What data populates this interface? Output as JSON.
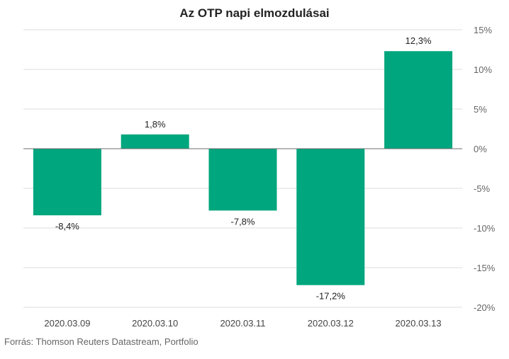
{
  "chart_data": {
    "type": "bar",
    "title": "Az OTP napi elmozdulásai",
    "categories": [
      "2020.03.09",
      "2020.03.10",
      "2020.03.11",
      "2020.03.12",
      "2020.03.13"
    ],
    "values": [
      -8.4,
      1.8,
      -7.8,
      -17.2,
      12.3
    ],
    "data_labels": [
      "-8,4%",
      "1,8%",
      "-7,8%",
      "-17,2%",
      "12,3%"
    ],
    "ylim": [
      -20,
      15
    ],
    "yticks": [
      15,
      10,
      5,
      0,
      -5,
      -10,
      -15,
      -20
    ],
    "ytick_labels": [
      "15%",
      "10%",
      "5%",
      "0%",
      "-5%",
      "-10%",
      "-15%",
      "-20%"
    ],
    "y_axis_position": "right",
    "grid": true,
    "legend": "none",
    "bar_color": "#00a67e"
  },
  "source": "Forrás: Thomson Reuters Datastream, Portfolio"
}
